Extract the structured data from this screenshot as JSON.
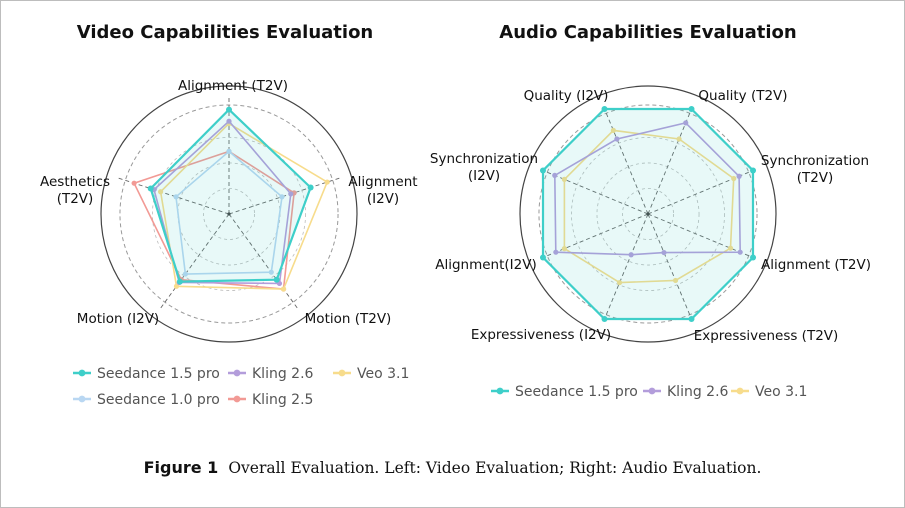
{
  "caption": {
    "label": "Figure 1",
    "text": "Overall Evaluation. Left: Video Evaluation; Right: Audio Evaluation."
  },
  "chart_data": [
    {
      "type": "radar",
      "title": "Video Capabilities Evaluation",
      "axes": [
        "Alignment (T2V)",
        "Alignment (I2V)",
        "Motion (T2V)",
        "Motion (I2V)",
        "Aesthetics (T2V)"
      ],
      "range": [
        0,
        1
      ],
      "grid": true,
      "legend_position": "bottom",
      "series": [
        {
          "name": "Seedance 1.5 pro",
          "color": "#3ecfc9",
          "values": [
            0.9,
            0.74,
            0.7,
            0.72,
            0.71
          ],
          "fill": true
        },
        {
          "name": "Kling 2.6",
          "color": "#b39ddb",
          "values": [
            0.8,
            0.56,
            0.74,
            0.73,
            0.68
          ]
        },
        {
          "name": "Veo 3.1",
          "color": "#f7dc8c",
          "values": [
            0.78,
            0.89,
            0.8,
            0.77,
            0.62
          ]
        },
        {
          "name": "Seedance 1.0 pro",
          "color": "#b9d7f2",
          "values": [
            0.54,
            0.48,
            0.62,
            0.64,
            0.48
          ]
        },
        {
          "name": "Kling 2.5",
          "color": "#f29a95",
          "values": [
            0.54,
            0.59,
            0.8,
            0.7,
            0.86
          ]
        }
      ]
    },
    {
      "type": "radar",
      "title": "Audio Capabilities Evaluation",
      "axes": [
        "Quality (T2V)",
        "Synchronization (T2V)",
        "Alignment (T2V)",
        "Expressiveness (T2V)",
        "Expressiveness (I2V)",
        "Alignment(I2V)",
        "Synchronization (I2V)",
        "Quality (I2V)"
      ],
      "range": [
        0,
        1
      ],
      "grid": true,
      "legend_position": "bottom",
      "series": [
        {
          "name": "Seedance 1.5 pro",
          "color": "#3ecfc9",
          "values": [
            0.98,
            0.98,
            0.98,
            0.98,
            0.98,
            0.98,
            0.98,
            0.98
          ],
          "fill": true
        },
        {
          "name": "Kling 2.6",
          "color": "#b39ddb",
          "values": [
            0.85,
            0.85,
            0.86,
            0.36,
            0.38,
            0.86,
            0.87,
            0.7
          ]
        },
        {
          "name": "Veo 3.1",
          "color": "#f7dc8c",
          "values": [
            0.7,
            0.8,
            0.77,
            0.62,
            0.64,
            0.78,
            0.78,
            0.78
          ]
        }
      ]
    }
  ]
}
